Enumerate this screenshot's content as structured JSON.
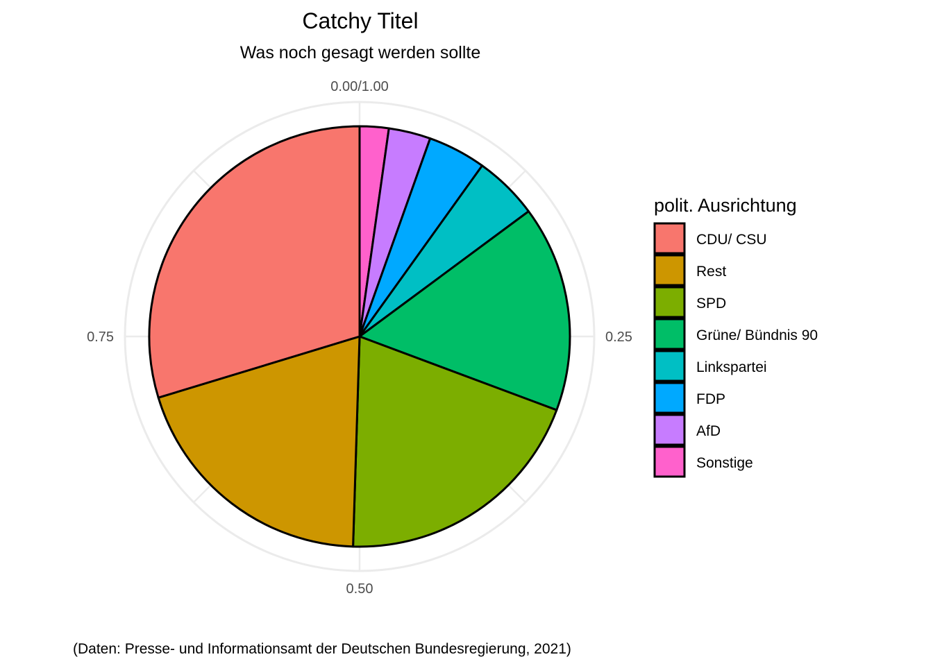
{
  "chart_data": {
    "type": "pie",
    "title": "Catchy Titel",
    "subtitle": "Was noch gesagt werden sollte",
    "caption": "(Daten: Presse- und Informationsamt der Deutschen Bundesregierung, 2021)",
    "legend_title": "polit. Ausrichtung",
    "legend_position": "right",
    "grid": true,
    "theta_ticks": [
      {
        "value": 0,
        "label": "0.00/1.00"
      },
      {
        "value": 0.25,
        "label": "0.25"
      },
      {
        "value": 0.5,
        "label": "0.50"
      },
      {
        "value": 0.75,
        "label": "0.75"
      }
    ],
    "categories": [
      "CDU/ CSU",
      "Rest",
      "SPD",
      "Grüne/ Bündnis 90",
      "Linkspartei",
      "FDP",
      "AfD",
      "Sonstige"
    ],
    "values": [
      0.3,
      0.2,
      0.2,
      0.16,
      0.05,
      0.045,
      0.0325,
      0.0225
    ],
    "colors": [
      "#F8766D",
      "#CD9600",
      "#7CAE00",
      "#00BE67",
      "#00BFC4",
      "#00A9FF",
      "#C77CFF",
      "#FF61CC"
    ]
  }
}
